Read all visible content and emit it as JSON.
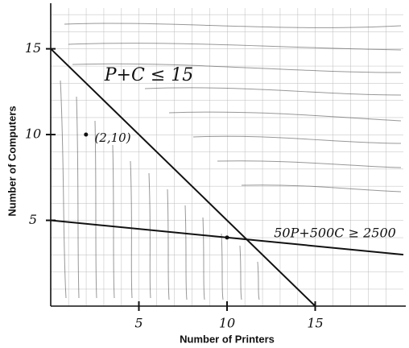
{
  "chart_data": {
    "type": "line",
    "xlabel": "Number of Printers",
    "ylabel": "Number of Computers",
    "xlim": [
      0,
      20
    ],
    "ylim": [
      0,
      17
    ],
    "xticks": [
      5,
      10,
      15
    ],
    "yticks": [
      5,
      10,
      15
    ],
    "series": [
      {
        "x": [
          0,
          15
        ],
        "values": [
          15,
          0
        ],
        "color": "#111111"
      },
      {
        "x": [
          0,
          20
        ],
        "values": [
          5,
          3
        ],
        "color": "#111111"
      }
    ],
    "points": {
      "x": [
        2,
        10
      ],
      "values": [
        10,
        4
      ],
      "color": "#111111"
    },
    "annotations": [
      "P+C ≤ 15",
      "(2,10)",
      "50P+500C ≥ 2500"
    ]
  }
}
